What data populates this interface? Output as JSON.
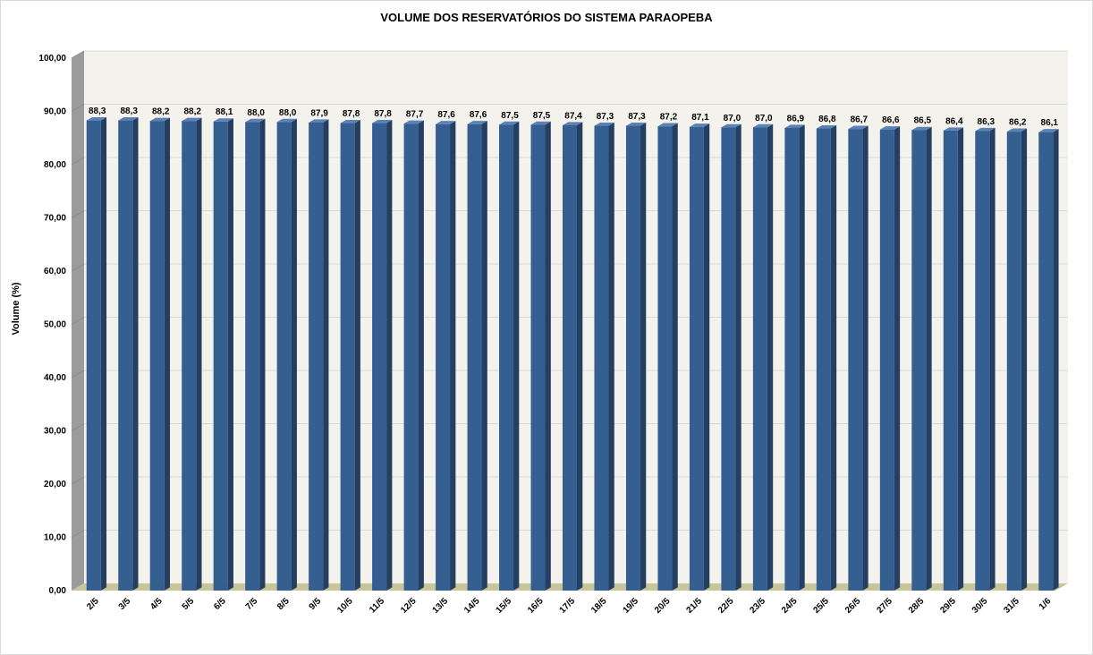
{
  "chart_data": {
    "type": "bar",
    "title": "VOLUME DOS RESERVATÓRIOS DO SISTEMA PARAOPEBA",
    "xlabel": "",
    "ylabel": "Volume (%)",
    "ylim": [
      0,
      100
    ],
    "y_ticks": [
      "0,00",
      "10,00",
      "20,00",
      "30,00",
      "40,00",
      "50,00",
      "60,00",
      "70,00",
      "80,00",
      "90,00",
      "100,00"
    ],
    "grid": true,
    "legend": "none",
    "categories": [
      "2/5",
      "3/5",
      "4/5",
      "5/5",
      "6/5",
      "7/5",
      "8/5",
      "9/5",
      "10/5",
      "11/5",
      "12/5",
      "13/5",
      "14/5",
      "15/5",
      "16/5",
      "17/5",
      "18/5",
      "19/5",
      "20/5",
      "21/5",
      "22/5",
      "23/5",
      "24/5",
      "25/5",
      "26/5",
      "27/5",
      "28/5",
      "29/5",
      "30/5",
      "31/5",
      "1/6"
    ],
    "values": [
      88.3,
      88.3,
      88.2,
      88.2,
      88.1,
      88.0,
      88.0,
      87.9,
      87.8,
      87.8,
      87.7,
      87.6,
      87.6,
      87.5,
      87.5,
      87.4,
      87.3,
      87.3,
      87.2,
      87.1,
      87.0,
      87.0,
      86.9,
      86.8,
      86.7,
      86.6,
      86.5,
      86.4,
      86.3,
      86.2,
      86.1
    ],
    "value_labels": [
      "88,3",
      "88,3",
      "88,2",
      "88,2",
      "88,1",
      "88,0",
      "88,0",
      "87,9",
      "87,8",
      "87,8",
      "87,7",
      "87,6",
      "87,6",
      "87,5",
      "87,5",
      "87,4",
      "87,3",
      "87,3",
      "87,2",
      "87,1",
      "87,0",
      "87,0",
      "86,9",
      "86,8",
      "86,7",
      "86,6",
      "86,5",
      "86,4",
      "86,3",
      "86,2",
      "86,1"
    ],
    "colors": {
      "bar_front": "#355F91",
      "bar_side": "#243F62",
      "bar_top": "#5B82B5",
      "back_wall": "#F4F2EC",
      "side_wall": "#9B9B9B",
      "floor": "#C9C59A",
      "gridline": "#D9D9D9"
    }
  }
}
